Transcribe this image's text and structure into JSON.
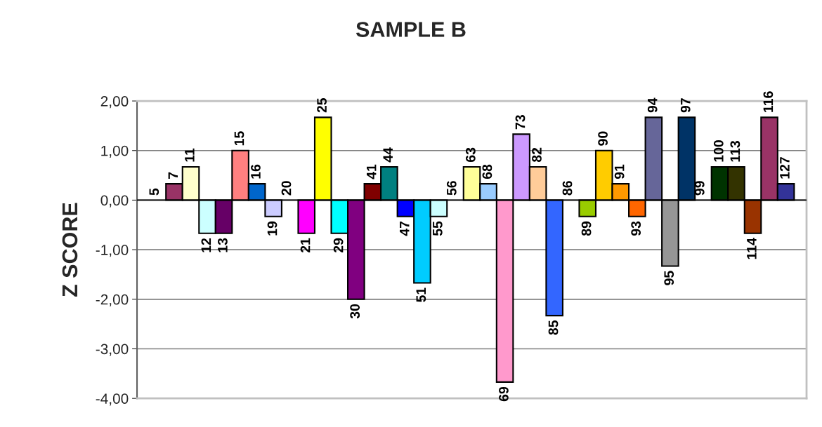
{
  "chart_data": {
    "type": "bar",
    "title": "SAMPLE B",
    "ylabel": "Z SCORE",
    "categories": [
      "5",
      "7",
      "11",
      "12",
      "13",
      "15",
      "16",
      "19",
      "20",
      "21",
      "25",
      "29",
      "30",
      "41",
      "44",
      "47",
      "51",
      "55",
      "56",
      "63",
      "68",
      "69",
      "73",
      "82",
      "85",
      "86",
      "89",
      "90",
      "91",
      "93",
      "94",
      "95",
      "97",
      "99",
      "100",
      "113",
      "114",
      "116",
      "127"
    ],
    "values": [
      null,
      0.33,
      0.67,
      -0.67,
      -0.67,
      1.0,
      0.33,
      -0.33,
      null,
      -0.67,
      1.67,
      -0.67,
      -2.0,
      0.33,
      0.67,
      -0.33,
      -1.67,
      -0.33,
      null,
      0.67,
      0.33,
      -3.67,
      1.33,
      0.67,
      -2.33,
      null,
      -0.33,
      1.0,
      0.33,
      -0.33,
      1.67,
      -1.33,
      1.67,
      null,
      0.67,
      0.67,
      -0.67,
      1.67,
      0.33
    ],
    "colors": [
      null,
      "#993366",
      "#ffffcc",
      "#ccffff",
      "#660066",
      "#ff8080",
      "#0066cc",
      "#ccccff",
      null,
      "#ff00ff",
      "#ffff00",
      "#00ffff",
      "#800080",
      "#800000",
      "#008080",
      "#0000ff",
      "#00ccff",
      "#ccffff",
      null,
      "#ffff99",
      "#99ccff",
      "#ff99cc",
      "#cc99ff",
      "#ffcc99",
      "#3366ff",
      null,
      "#99cc00",
      "#ffcc00",
      "#ff9900",
      "#ff6600",
      "#666699",
      "#969696",
      "#003366",
      null,
      "#003300",
      "#333300",
      "#993300",
      "#993366",
      "#333399"
    ],
    "ylim": [
      -4,
      2
    ],
    "yticks": [
      {
        "value": -4,
        "label": "-4,00"
      },
      {
        "value": -3,
        "label": "-3,00"
      },
      {
        "value": -2,
        "label": "-2,00"
      },
      {
        "value": -1,
        "label": "-1,00"
      },
      {
        "value": 0,
        "label": "0,00"
      },
      {
        "value": 1,
        "label": "1,00"
      },
      {
        "value": 2,
        "label": "2,00"
      }
    ],
    "grid": "y",
    "tick_labels": "y"
  }
}
